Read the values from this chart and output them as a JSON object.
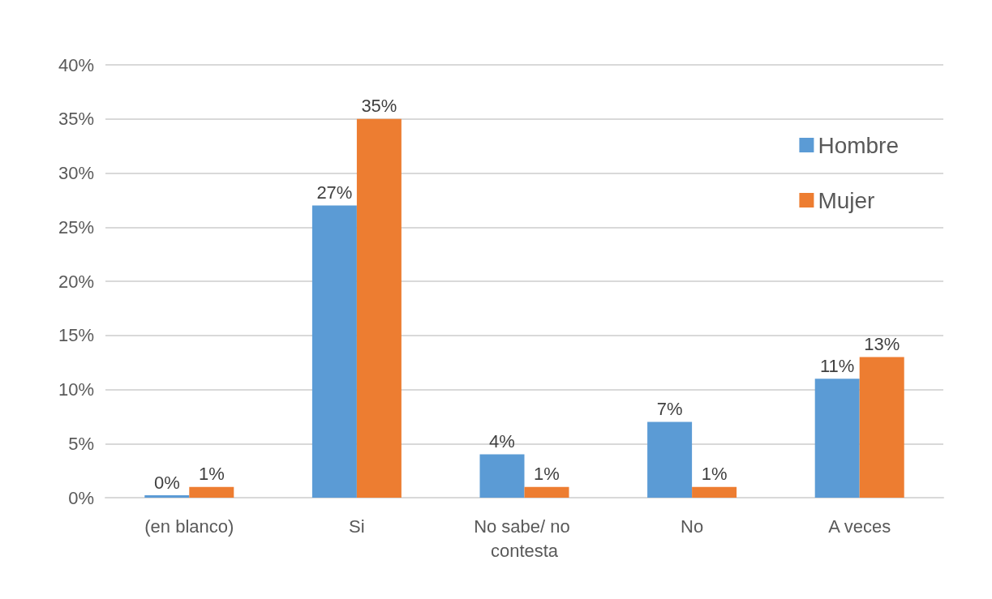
{
  "chart_data": {
    "type": "bar",
    "categories": [
      "(en blanco)",
      "Si",
      "No sabe/ no contesta",
      "No",
      "A veces"
    ],
    "series": [
      {
        "name": "Hombre",
        "color": "#5b9bd5",
        "values": [
          0,
          27,
          4,
          7,
          11
        ],
        "value_labels": [
          "0%",
          "27%",
          "4%",
          "7%",
          "11%"
        ]
      },
      {
        "name": "Mujer",
        "color": "#ed7d31",
        "values": [
          1,
          35,
          1,
          1,
          13
        ],
        "value_labels": [
          "1%",
          "35%",
          "1%",
          "1%",
          "13%"
        ]
      }
    ],
    "ylim": [
      0,
      40
    ],
    "yticks": [
      {
        "value": 0,
        "label": "0%"
      },
      {
        "value": 5,
        "label": "5%"
      },
      {
        "value": 10,
        "label": "10%"
      },
      {
        "value": 15,
        "label": "15%"
      },
      {
        "value": 20,
        "label": "20%"
      },
      {
        "value": 25,
        "label": "25%"
      },
      {
        "value": 30,
        "label": "30%"
      },
      {
        "value": 35,
        "label": "35%"
      },
      {
        "value": 40,
        "label": "40%"
      }
    ],
    "grid": "y",
    "legend": "right"
  }
}
